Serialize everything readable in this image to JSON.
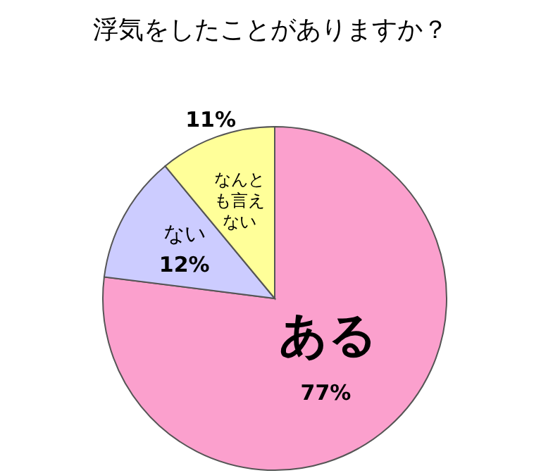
{
  "chart_data": {
    "type": "pie",
    "title": "浮気をしたことがありますか？",
    "categories": [
      "ある",
      "ない",
      "なんとも言えない"
    ],
    "values": [
      77,
      12,
      11
    ],
    "colors": [
      "#fba0cd",
      "#ccccff",
      "#ffff99"
    ],
    "value_labels": [
      "77%",
      "12%",
      "11%"
    ]
  }
}
